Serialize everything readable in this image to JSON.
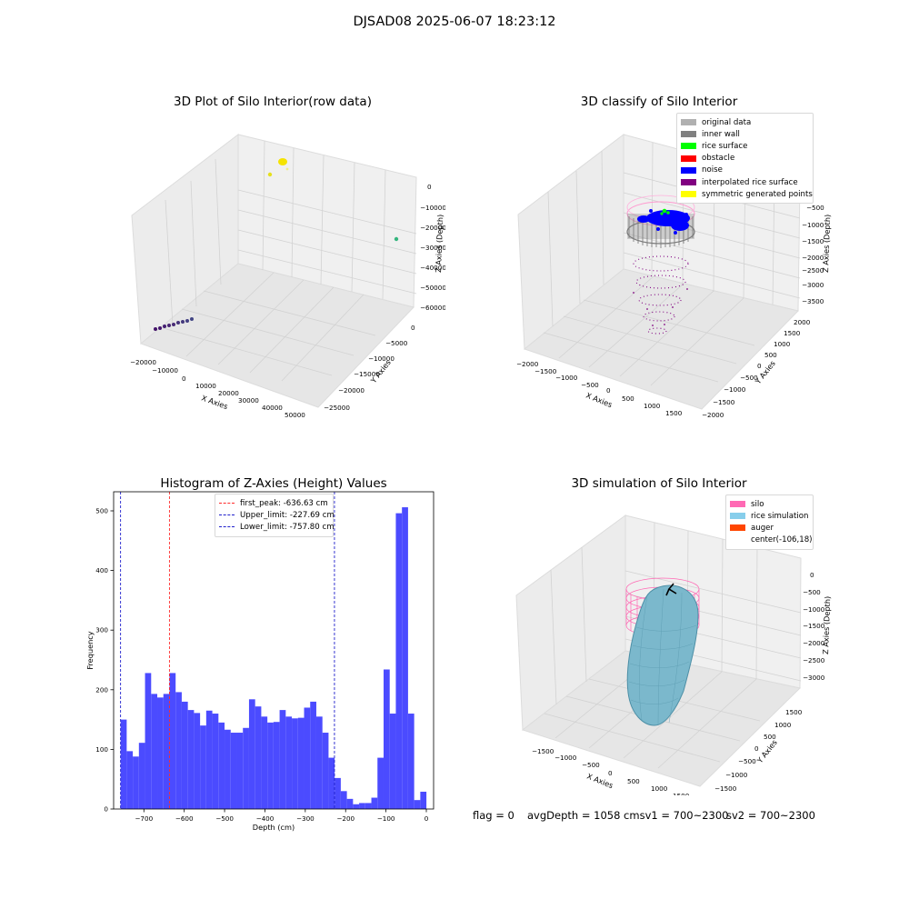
{
  "figure_title": "DJSAD08 2025-06-07 18:23:12",
  "colors": {
    "hist_bar": "#4b4bff",
    "peak_line": "#ff2a2a",
    "limit_line": "#2020cc",
    "pane_fill": "#f2f2f2",
    "grid": "#d6d6d6"
  },
  "panels": {
    "raw": {
      "title": "3D Plot of Silo Interior(row data)",
      "xlabel": "X Axies",
      "ylabel": "Y Axies",
      "zlabel": "Z Axies (Depth)",
      "xticks": [
        "−20000",
        "−10000",
        "0",
        "10000",
        "20000",
        "30000",
        "40000",
        "50000"
      ],
      "yticks": [
        "0",
        "−5000",
        "−10000",
        "−15000",
        "−20000",
        "−25000"
      ],
      "zticks": [
        "0",
        "−10000",
        "−20000",
        "−30000",
        "−40000",
        "−50000",
        "−60000"
      ]
    },
    "classify": {
      "title": "3D classify of Silo Interior",
      "xlabel": "X Axies",
      "ylabel": "Y Axies",
      "zlabel": "Z Axies (Depth)",
      "xticks": [
        "−2000",
        "−1500",
        "−1000",
        "−500",
        "0",
        "500",
        "1000",
        "1500"
      ],
      "yticks": [
        "2000",
        "1500",
        "1000",
        "500",
        "0",
        "−500",
        "−1000",
        "−1500",
        "−2000"
      ],
      "zticks": [
        "−500",
        "−1000",
        "−1500",
        "−2000",
        "−2500",
        "−3000",
        "−3500"
      ],
      "legend": [
        {
          "label": "original data",
          "color": "#b0b0b0"
        },
        {
          "label": "inner wall",
          "color": "#808080"
        },
        {
          "label": "rice surface",
          "color": "#00ff00"
        },
        {
          "label": "obstacle",
          "color": "#ff0000"
        },
        {
          "label": "noise",
          "color": "#0000ff"
        },
        {
          "label": "interpolated rice surface",
          "color": "#800080"
        },
        {
          "label": "symmetric generated points",
          "color": "#ffff00"
        }
      ]
    },
    "histogram": {
      "title": "Histogram of Z-Axies (Height) Values",
      "xlabel": "Depth (cm)",
      "ylabel": "Frequency",
      "legend": [
        {
          "label": "first_peak: -636.63 cm",
          "color": "#ff2a2a"
        },
        {
          "label": "Upper_limit: -227.69 cm",
          "color": "#2020cc"
        },
        {
          "label": "Lower_limit: -757.80 cm",
          "color": "#2020cc"
        }
      ]
    },
    "simulation": {
      "title": "3D simulation of Silo Interior",
      "xlabel": "X Axies",
      "ylabel": "Y Axies",
      "zlabel": "Z Axies (Depth)",
      "xticks": [
        "−1500",
        "−1000",
        "−500",
        "0",
        "500",
        "1000",
        "1500"
      ],
      "yticks": [
        "1500",
        "1000",
        "500",
        "0",
        "−500",
        "−1000",
        "−1500"
      ],
      "zticks": [
        "0",
        "−500",
        "−1000",
        "−1500",
        "−2000",
        "−2500",
        "−3000"
      ],
      "legend": [
        {
          "label": "silo",
          "color": "#ff69b4"
        },
        {
          "label": "rice simulation",
          "color": "#87ceeb"
        },
        {
          "label": "auger",
          "color": "#ff4500"
        },
        {
          "label": "center(-106,18)",
          "color": ""
        }
      ]
    }
  },
  "footer": {
    "flag": "flag = 0",
    "avg_depth": "avgDepth = 1058 cmsv1 = 700~2300",
    "sv2": "sv2 = 700~2300"
  },
  "chart_data": [
    {
      "type": "scatter",
      "title": "3D Plot of Silo Interior(row data)",
      "xlabel": "X Axies",
      "ylabel": "Y Axies",
      "zlabel": "Z Axies (Depth)",
      "xlim": [
        -22000,
        55000
      ],
      "ylim": [
        -27000,
        2000
      ],
      "zlim": [
        -65000,
        2000
      ],
      "note_3d": true,
      "grid": true
    },
    {
      "type": "scatter",
      "title": "3D classify of Silo Interior",
      "xlabel": "X Axies",
      "ylabel": "Y Axies",
      "zlabel": "Z Axies (Depth)",
      "xlim": [
        -2100,
        1800
      ],
      "ylim": [
        -2100,
        2100
      ],
      "zlim": [
        -3800,
        0
      ],
      "series": [
        {
          "name": "original data"
        },
        {
          "name": "inner wall"
        },
        {
          "name": "rice surface"
        },
        {
          "name": "obstacle"
        },
        {
          "name": "noise"
        },
        {
          "name": "interpolated rice surface"
        },
        {
          "name": "symmetric generated points"
        }
      ],
      "legend_position": "upper right",
      "grid": true
    },
    {
      "type": "bar",
      "title": "Histogram of Z-Axies (Height) Values",
      "xlabel": "Depth (cm)",
      "ylabel": "Frequency",
      "xlim": [
        -775,
        18
      ],
      "ylim": [
        0,
        532
      ],
      "xticks": [
        -700,
        -600,
        -500,
        -400,
        -300,
        -200,
        -100,
        0
      ],
      "yticks": [
        0,
        100,
        200,
        300,
        400,
        500
      ],
      "bin_start": -757.8,
      "bin_width": 15.16,
      "values": [
        150,
        97,
        88,
        111,
        228,
        193,
        187,
        193,
        228,
        196,
        180,
        166,
        161,
        140,
        165,
        160,
        145,
        133,
        128,
        128,
        136,
        184,
        172,
        155,
        145,
        146,
        166,
        155,
        152,
        153,
        170,
        180,
        155,
        128,
        86,
        52,
        30,
        17,
        8,
        10,
        10,
        19,
        86,
        234,
        160,
        496,
        506,
        160,
        15,
        29
      ],
      "vlines": [
        {
          "name": "first_peak: -636.63 cm",
          "x": -636.63
        },
        {
          "name": "Upper_limit: -227.69 cm",
          "x": -227.69
        },
        {
          "name": "Lower_limit: -757.80 cm",
          "x": -757.8
        }
      ],
      "legend_position": "upper center",
      "grid": false
    },
    {
      "type": "scatter",
      "title": "3D simulation of Silo Interior",
      "xlabel": "X Axies",
      "ylabel": "Y Axies",
      "zlabel": "Z Axies (Depth)",
      "xlim": [
        -1800,
        1700
      ],
      "ylim": [
        -1700,
        1700
      ],
      "zlim": [
        -3300,
        200
      ],
      "series": [
        {
          "name": "silo"
        },
        {
          "name": "rice simulation"
        },
        {
          "name": "auger"
        }
      ],
      "center": [
        -106,
        18
      ],
      "legend_position": "upper right",
      "grid": true
    }
  ]
}
